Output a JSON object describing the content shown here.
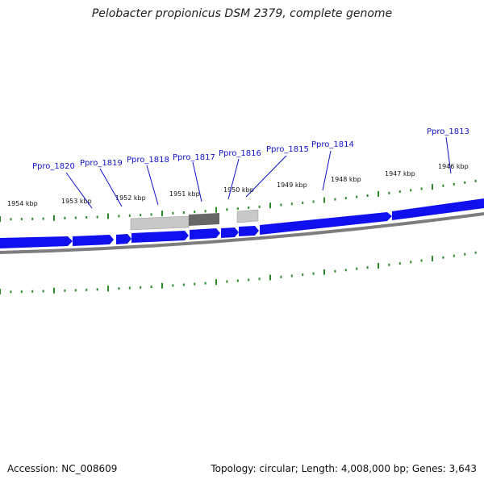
{
  "title": "Pelobacter propionicus DSM 2379, complete genome",
  "footer": {
    "accession": "Accession: NC_008609",
    "info": "Topology: circular; Length: 4,008,000 bp; Genes: 3,643"
  },
  "colors": {
    "background": "#ffffff",
    "gene_forward": "#1010ee",
    "tick": "#2a8a2a",
    "backbone": "#808080",
    "label": "#1010cc",
    "feature_light": "#c4c4c4",
    "feature_dark": "#666666"
  },
  "scale_labels": [
    "1954 kbp",
    "1953 kbp",
    "1952 kbp",
    "1951 kbp",
    "1950 kbp",
    "1949 kbp",
    "1948 kbp",
    "1947 kbp",
    "1946 kbp"
  ],
  "gene_labels": [
    "Ppro_1820",
    "Ppro_1819",
    "Ppro_1818",
    "Ppro_1817",
    "Ppro_1816",
    "Ppro_1815",
    "Ppro_1814",
    "Ppro_1813"
  ]
}
